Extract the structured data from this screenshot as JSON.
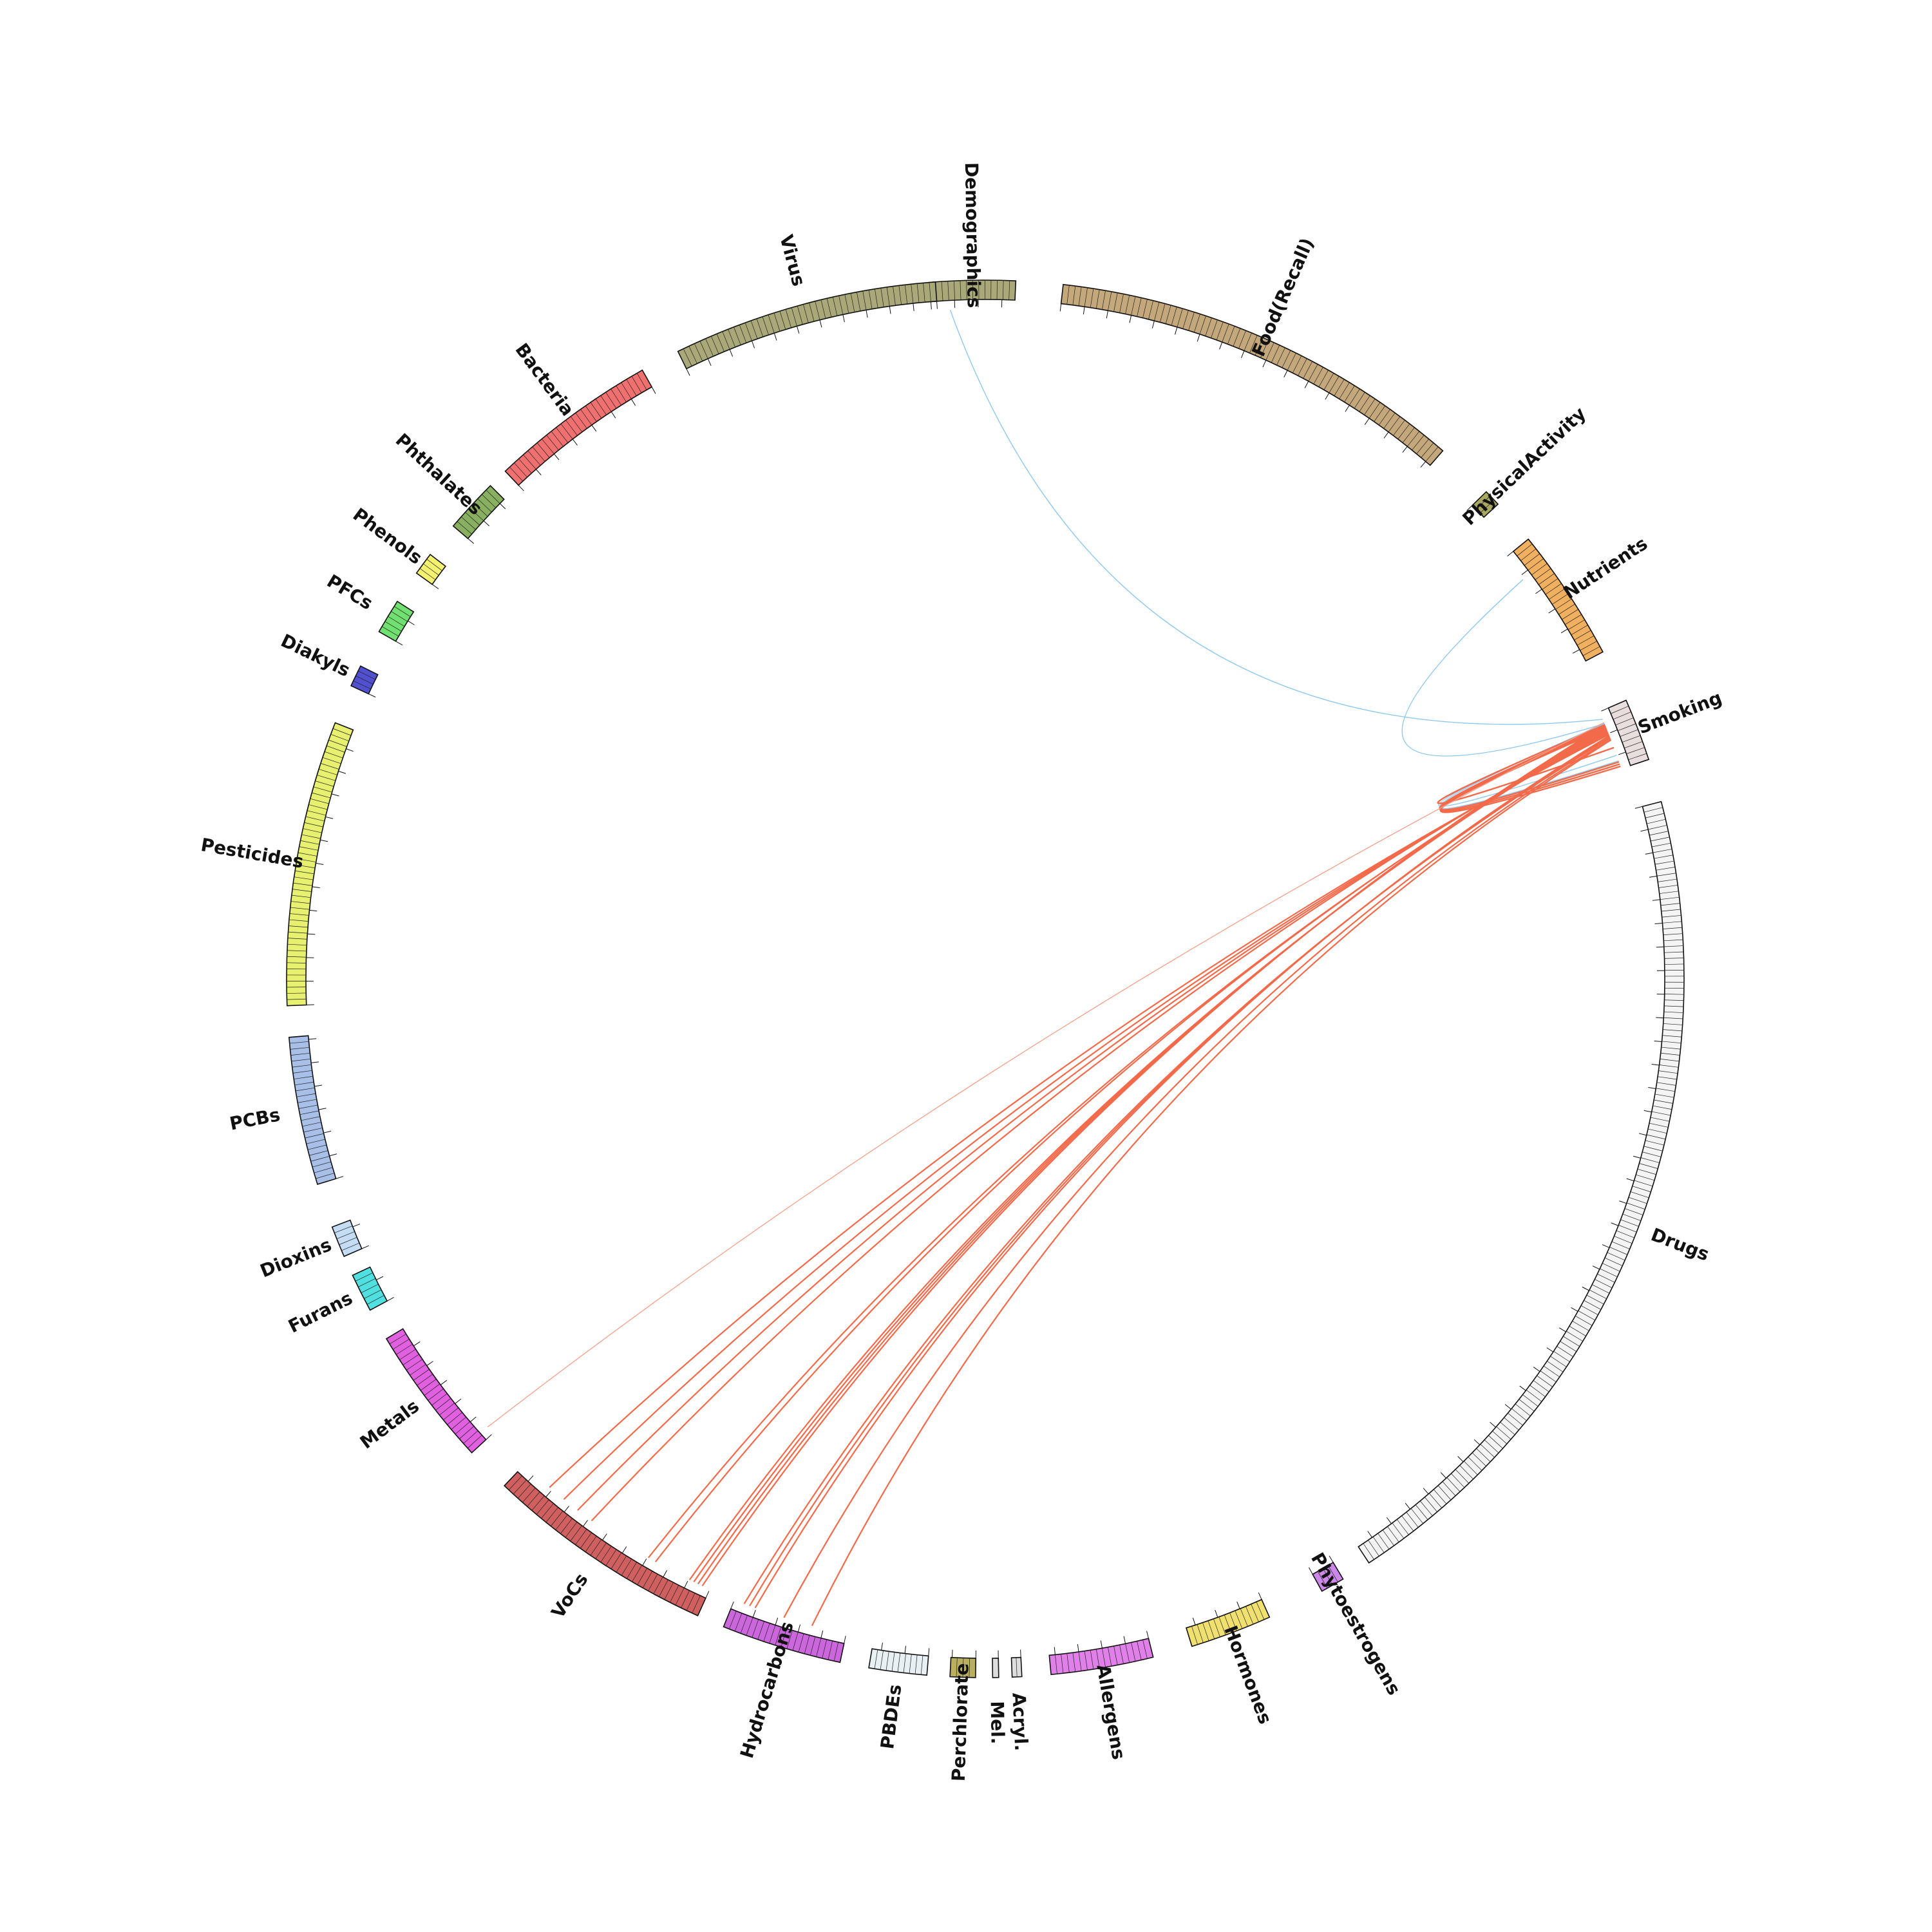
{
  "segments": [
    {
      "id": "demographics",
      "label": "Demographics",
      "color": "#a8a878",
      "start": -4.6,
      "end": 2.5
    },
    {
      "id": "food-recall",
      "label": "Food(Recall)",
      "color": "#c4a87c",
      "start": 6.4,
      "end": 40.9
    },
    {
      "id": "physical-activity",
      "label": "PhysicalActivity",
      "color": "#a8a860",
      "start": 45.8,
      "end": 47.2
    },
    {
      "id": "nutrients",
      "label": "Nutrients",
      "color": "#f0b060",
      "start": 51.0,
      "end": 62.1
    },
    {
      "id": "smoking",
      "label": "Smoking",
      "color": "#e8dede",
      "start": 66.5,
      "end": 71.7
    },
    {
      "id": "drugs",
      "label": "Drugs",
      "color": "#f4f4f4",
      "start": 75.3,
      "end": 146.7
    },
    {
      "id": "phytoestrogens",
      "label": "Phytoestrogens",
      "color": "#cc88e8",
      "start": 149.2,
      "end": 151.2
    },
    {
      "id": "hormones",
      "label": "Hormones",
      "color": "#f0e070",
      "start": 156.0,
      "end": 162.8
    },
    {
      "id": "allergens",
      "label": "Allergens",
      "color": "#e080e8",
      "start": 166.1,
      "end": 174.6
    },
    {
      "id": "acryl",
      "label": "Acryl.",
      "color": "#dddddd",
      "start": 177.0,
      "end": 177.8
    },
    {
      "id": "mel",
      "label": "Mel.",
      "color": "#dddddd",
      "start": 178.9,
      "end": 179.4
    },
    {
      "id": "perchlorate",
      "label": "Perchlorate",
      "color": "#b8b060",
      "start": 180.8,
      "end": 182.9
    },
    {
      "id": "pbdes",
      "label": "PBDEs",
      "color": "#e8f0f4",
      "start": 184.8,
      "end": 189.6
    },
    {
      "id": "hydrocarbons",
      "label": "Hydrocarbons",
      "color": "#cc66dd",
      "start": 192.0,
      "end": 202.0
    },
    {
      "id": "vocs",
      "label": "VoCs",
      "color": "#d06060",
      "start": 204.3,
      "end": 223.5
    },
    {
      "id": "metals",
      "label": "Metals",
      "color": "#e060e0",
      "start": 227.3,
      "end": 239.0
    },
    {
      "id": "furans",
      "label": "Furans",
      "color": "#50e0e0",
      "start": 241.7,
      "end": 244.9
    },
    {
      "id": "dioxins",
      "label": "Dioxins",
      "color": "#c4dcf4",
      "start": 246.6,
      "end": 249.2
    },
    {
      "id": "pcbs",
      "label": "PCBs",
      "color": "#a8c0e8",
      "start": 252.9,
      "end": 265.2
    },
    {
      "id": "pesticides",
      "label": "Pesticides",
      "color": "#e8f070",
      "start": 267.8,
      "end": 291.5
    },
    {
      "id": "diakyls",
      "label": "Diakyls",
      "color": "#5050d0",
      "start": 294.8,
      "end": 296.6
    },
    {
      "id": "pfcs",
      "label": "PFCs",
      "color": "#70e070",
      "start": 299.8,
      "end": 302.7
    },
    {
      "id": "phenols",
      "label": "Phenols",
      "color": "#f4f070",
      "start": 305.5,
      "end": 307.4
    },
    {
      "id": "phthalates",
      "label": "Phthalates",
      "color": "#88b060",
      "start": 310.4,
      "end": 314.9
    },
    {
      "id": "bacteria",
      "label": "Bacteria",
      "color": "#f07070",
      "start": 316.6,
      "end": 330.6
    },
    {
      "id": "virus",
      "label": "Virus",
      "color": "#a8a878",
      "start": 333.9,
      "end": 355.9
    }
  ],
  "links": [
    {
      "from": -3.0,
      "to": 67.2,
      "color": "#8ec8f0",
      "width": 1.4
    },
    {
      "from": 53.4,
      "to": 67.6,
      "color": "#8ec8f0",
      "width": 1.4
    },
    {
      "from": 70.5,
      "to": 67.6,
      "color": "#8ec8f0",
      "width": 1.4
    },
    {
      "from": 71.0,
      "to": 67.6,
      "color": "#8ec8f0",
      "width": 1.4
    },
    {
      "from": 71.1,
      "to": 67.8,
      "color": "#f26a4a",
      "width": 2.4
    },
    {
      "from": 71.3,
      "to": 67.9,
      "color": "#f26a4a",
      "width": 2.4
    },
    {
      "from": 71.5,
      "to": 68.0,
      "color": "#f26a4a",
      "width": 2.4
    },
    {
      "from": 69.8,
      "to": 67.7,
      "color": "#f26a4a",
      "width": 2.4
    },
    {
      "from": 205.0,
      "to": 67.7,
      "color": "#f26a4a",
      "width": 2.2
    },
    {
      "from": 205.4,
      "to": 67.8,
      "color": "#f26a4a",
      "width": 2.2
    },
    {
      "from": 205.8,
      "to": 67.9,
      "color": "#f26a4a",
      "width": 2.2
    },
    {
      "from": 206.2,
      "to": 68.0,
      "color": "#f26a4a",
      "width": 2.2
    },
    {
      "from": 209.5,
      "to": 68.1,
      "color": "#f26a4a",
      "width": 2.2
    },
    {
      "from": 210.2,
      "to": 68.2,
      "color": "#f26a4a",
      "width": 2.2
    },
    {
      "from": 216.0,
      "to": 68.3,
      "color": "#f26a4a",
      "width": 2.2
    },
    {
      "from": 217.5,
      "to": 68.4,
      "color": "#f26a4a",
      "width": 2.2
    },
    {
      "from": 219.0,
      "to": 68.5,
      "color": "#f26a4a",
      "width": 2.2
    },
    {
      "from": 220.6,
      "to": 68.6,
      "color": "#f26a4a",
      "width": 2.2
    },
    {
      "from": 200.1,
      "to": 68.7,
      "color": "#f26a4a",
      "width": 2.2
    },
    {
      "from": 200.6,
      "to": 68.8,
      "color": "#f26a4a",
      "width": 2.2
    },
    {
      "from": 201.1,
      "to": 68.9,
      "color": "#f26a4a",
      "width": 2.2
    },
    {
      "from": 197.5,
      "to": 69.0,
      "color": "#f26a4a",
      "width": 2.2
    },
    {
      "from": 195.0,
      "to": 69.1,
      "color": "#f26a4a",
      "width": 2.2
    },
    {
      "from": 228.0,
      "to": 67.5,
      "color": "#f5a08a",
      "width": 1.3
    }
  ]
}
